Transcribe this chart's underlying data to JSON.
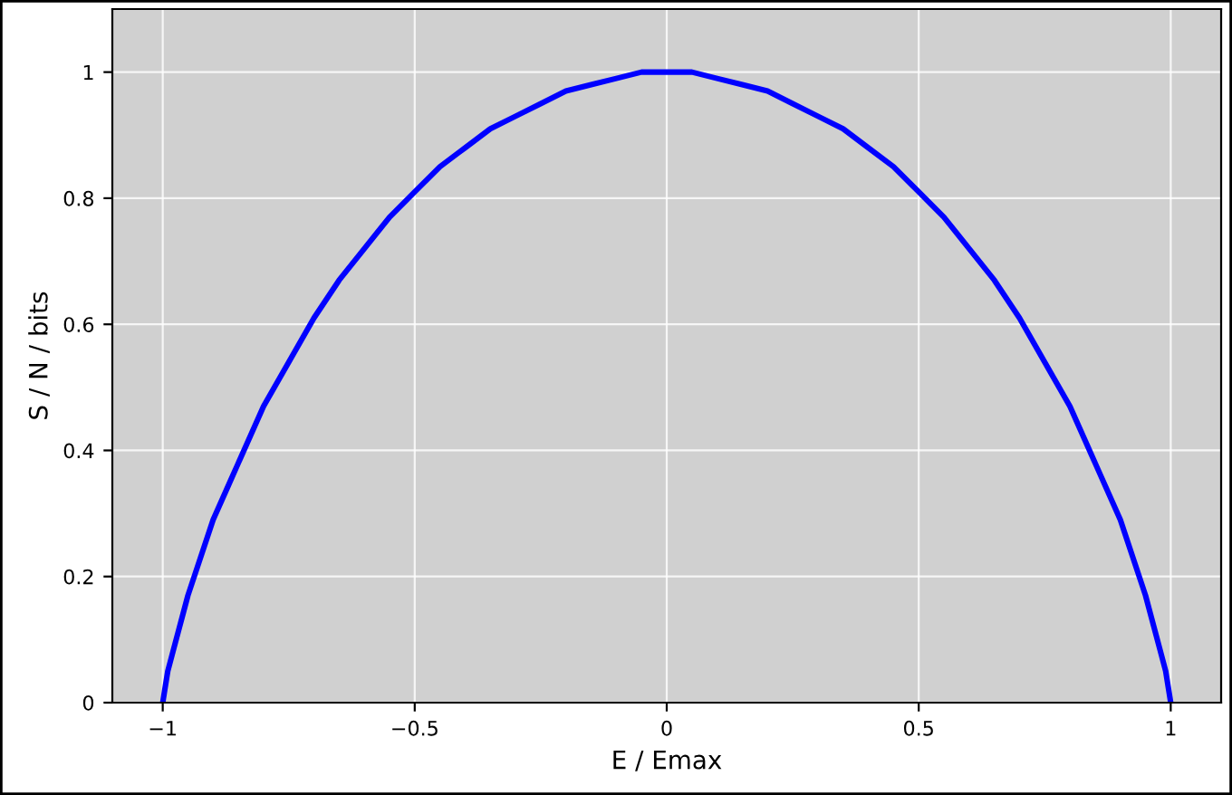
{
  "chart_data": {
    "type": "line",
    "xlabel": "E / Emax",
    "ylabel": "S / N / bits",
    "x": [
      -1,
      -0.99,
      -0.98,
      -0.95,
      -0.9,
      -0.85,
      -0.8,
      -0.75,
      -0.7,
      -0.65,
      -0.6,
      -0.55,
      -0.5,
      -0.45,
      -0.4,
      -0.35,
      -0.3,
      -0.25,
      -0.2,
      -0.15,
      -0.1,
      -0.05,
      0,
      0.05,
      0.1,
      0.15,
      0.2,
      0.25,
      0.3,
      0.35,
      0.4,
      0.45,
      0.5,
      0.55,
      0.6,
      0.65,
      0.7,
      0.75,
      0.8,
      0.85,
      0.9,
      0.95,
      0.98,
      0.99,
      1
    ],
    "series": [
      {
        "color": "#0000ff",
        "values": [
          0,
          0.05,
          0.08,
          0.17,
          0.29,
          0.38,
          0.47,
          0.54,
          0.61,
          0.67,
          0.72,
          0.77,
          0.81,
          0.85,
          0.88,
          0.91,
          0.93,
          0.95,
          0.97,
          0.98,
          0.99,
          1,
          1,
          1,
          0.99,
          0.98,
          0.97,
          0.95,
          0.93,
          0.91,
          0.88,
          0.85,
          0.81,
          0.77,
          0.72,
          0.67,
          0.61,
          0.54,
          0.47,
          0.38,
          0.29,
          0.17,
          0.08,
          0.05,
          0
        ]
      }
    ],
    "xlim": [
      -1.1,
      1.1
    ],
    "ylim": [
      0,
      1.1
    ],
    "xticks": [
      {
        "value": -1,
        "label": "−1"
      },
      {
        "value": -0.5,
        "label": "−0.5"
      },
      0,
      0.5,
      1
    ],
    "yticks": [
      0,
      0.2,
      0.4,
      0.6,
      0.8,
      1
    ],
    "grid": true,
    "marker": "none",
    "line_style": "solid"
  }
}
